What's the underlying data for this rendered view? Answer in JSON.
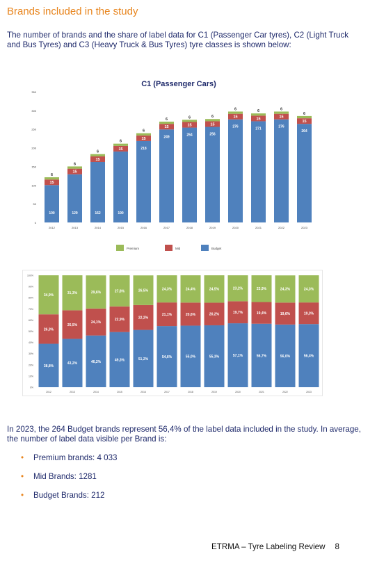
{
  "heading": "Brands included in the study",
  "intro": "The number of brands and the share of label data for C1 (Passenger Car tyres), C2 (Light Truck and Bus Tyres) and C3 (Heavy Truck & Bus Tyres) tyre classes is shown below:",
  "colors": {
    "premium": "#9bbb59",
    "mid": "#c0504d",
    "budget": "#4f81bd",
    "accent": "#e8851e"
  },
  "chart_data": [
    {
      "type": "bar",
      "stacked": true,
      "title": "C1 (Passenger Cars)",
      "categories": [
        "2012",
        "2013",
        "2014",
        "2015",
        "2016",
        "2017",
        "2018",
        "2019",
        "2020",
        "2021",
        "2022",
        "2023"
      ],
      "series": [
        {
          "name": "Budget",
          "values": [
            100,
            129,
            162,
            190,
            218,
            249,
            254,
            256,
            276,
            271,
            276,
            264
          ]
        },
        {
          "name": "Mid",
          "values": [
            15,
            15,
            15,
            15,
            15,
            15,
            15,
            15,
            15,
            15,
            15,
            15
          ]
        },
        {
          "name": "Premium",
          "values": [
            6,
            6,
            6,
            6,
            6,
            6,
            6,
            6,
            6,
            6,
            6,
            6
          ]
        }
      ],
      "yticks": [
        "0",
        "50",
        "100",
        "150",
        "200",
        "250",
        "300",
        "350"
      ],
      "ylim": [
        0,
        350
      ],
      "legend": [
        "Premium",
        "Mid",
        "Budget"
      ],
      "legend_position": "bottom",
      "grid": false
    },
    {
      "type": "bar",
      "stacked": true,
      "percent": true,
      "title": "",
      "categories": [
        "2012",
        "2013",
        "2014",
        "2015",
        "2016",
        "2017",
        "2018",
        "2019",
        "2020",
        "2021",
        "2022",
        "2023"
      ],
      "series": [
        {
          "name": "Budget",
          "values": [
            38.8,
            43.2,
            46.2,
            49.3,
            51.2,
            54.6,
            55.0,
            55.3,
            57.1,
            56.7,
            56.0,
            56.4
          ],
          "labels": [
            "38,8%",
            "43,2%",
            "46,2%",
            "49,3%",
            "51,2%",
            "54,6%",
            "55,0%",
            "55,3%",
            "57,1%",
            "56,7%",
            "56,0%",
            "56,4%"
          ]
        },
        {
          "name": "Mid",
          "values": [
            26.3,
            25.5,
            24.1,
            22.9,
            22.2,
            21.1,
            20.6,
            20.2,
            19.7,
            19.4,
            19.6,
            19.3
          ],
          "labels": [
            "26,3%",
            "25,5%",
            "24,1%",
            "22,9%",
            "22,2%",
            "21,1%",
            "20,6%",
            "20,2%",
            "19,7%",
            "19,4%",
            "19,6%",
            "19,3%"
          ]
        },
        {
          "name": "Premium",
          "values": [
            34.9,
            31.3,
            29.6,
            27.8,
            26.5,
            24.3,
            24.4,
            24.5,
            23.2,
            23.9,
            24.3,
            24.3
          ],
          "labels": [
            "34,9%",
            "31,3%",
            "29,6%",
            "27,8%",
            "26,5%",
            "24,3%",
            "24,4%",
            "24,5%",
            "23,2%",
            "23,9%",
            "24,3%",
            "24,3%"
          ]
        }
      ],
      "yticks": [
        "0%",
        "10%",
        "20%",
        "30%",
        "40%",
        "50%",
        "60%",
        "70%",
        "80%",
        "90%",
        "100%"
      ],
      "ylim": [
        0,
        100
      ],
      "grid": false
    }
  ],
  "summary": "In 2023, the 264 Budget brands represent 56,4% of the label data included in the study. In average, the number of label data visible per Brand is:",
  "bullets": [
    "Premium brands: 4 033",
    "Mid Brands: 1281",
    "Budget Brands: 212"
  ],
  "bullet_symbol": "•",
  "footer": {
    "title": "ETRMA – Tyre Labeling Review",
    "page": "8"
  }
}
